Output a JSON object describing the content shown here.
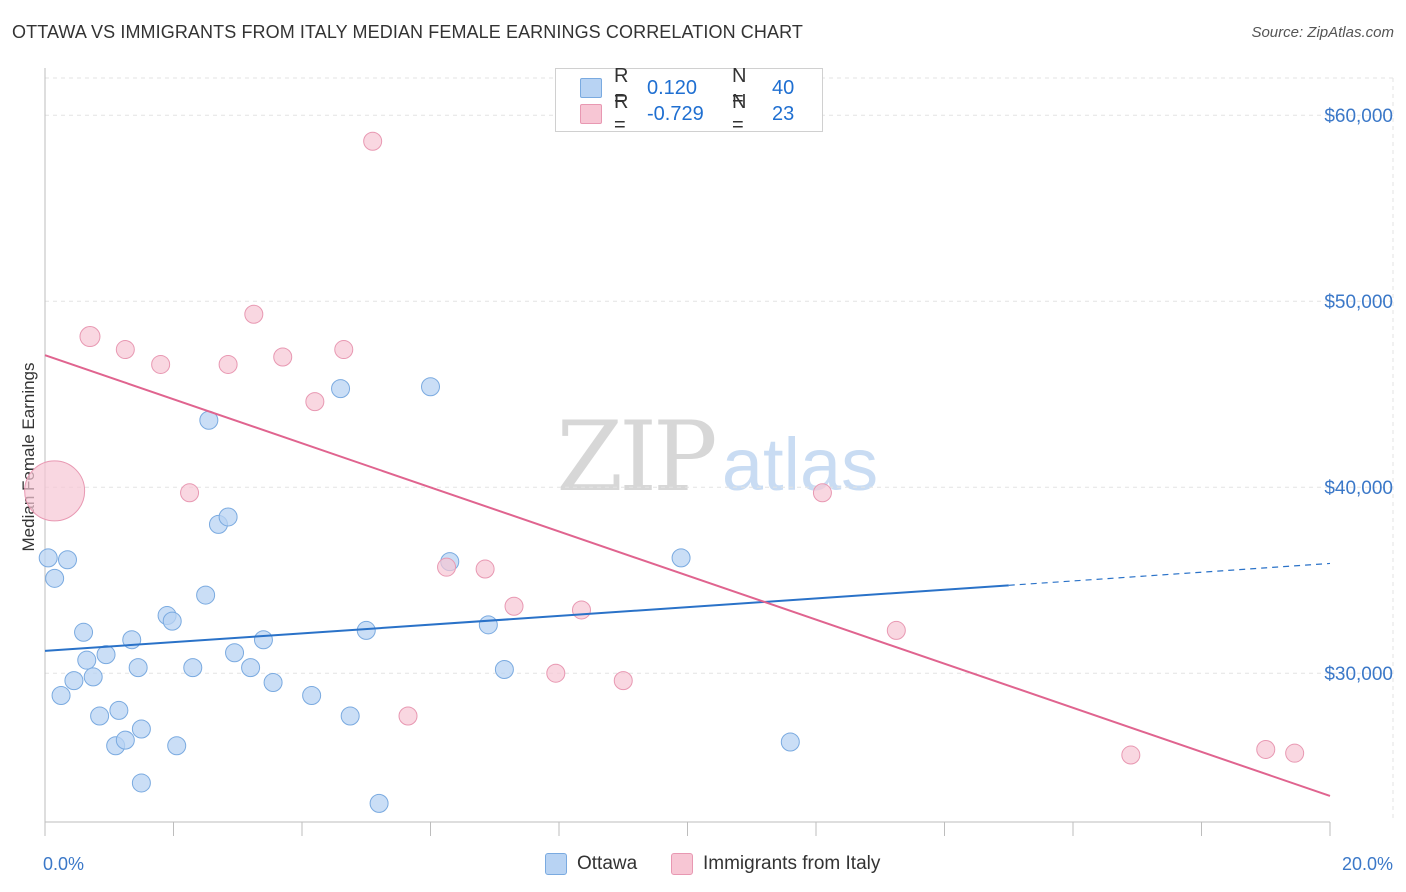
{
  "title": "OTTAWA VS IMMIGRANTS FROM ITALY MEDIAN FEMALE EARNINGS CORRELATION CHART",
  "source": "Source: ZipAtlas.com",
  "watermark": {
    "zip": "ZIP",
    "atlas": "atlas"
  },
  "legend_top": {
    "rows": [
      {
        "r_label": "R =",
        "r_value": "0.120",
        "n_label": "N =",
        "n_value": "40"
      },
      {
        "r_label": "R =",
        "r_value": "-0.729",
        "n_label": "N =",
        "n_value": "23"
      }
    ]
  },
  "legend_bottom": {
    "ottawa": "Ottawa",
    "italy": "Immigrants from Italy"
  },
  "colors": {
    "ottawa_fill": "#b8d3f3",
    "ottawa_stroke": "#7aaae0",
    "ottawa_line": "#2a72c8",
    "italy_fill": "#f7c6d4",
    "italy_stroke": "#e898b2",
    "italy_line": "#e0648f",
    "axis_text": "#3b78c8",
    "grid": "#e3e3e3"
  },
  "chart_data": {
    "type": "scatter",
    "ylabel": "Median Female Earnings",
    "xlabel": "",
    "xlim": [
      0,
      20
    ],
    "ylim": [
      22000,
      62000
    ],
    "x_tick_labels": [
      "0.0%",
      "20.0%"
    ],
    "y_ticks": [
      {
        "value": 30000,
        "label": "$30,000"
      },
      {
        "value": 40000,
        "label": "$40,000"
      },
      {
        "value": 50000,
        "label": "$50,000"
      },
      {
        "value": 60000,
        "label": "$60,000"
      }
    ],
    "grid": true,
    "series": [
      {
        "name": "Ottawa",
        "points": [
          [
            0.05,
            36200
          ],
          [
            0.35,
            36100
          ],
          [
            0.15,
            35100
          ],
          [
            0.6,
            32200
          ],
          [
            0.25,
            28800
          ],
          [
            0.45,
            29600
          ],
          [
            0.65,
            30700
          ],
          [
            0.75,
            29800
          ],
          [
            0.85,
            27700
          ],
          [
            0.95,
            31000
          ],
          [
            1.15,
            28000
          ],
          [
            1.35,
            31800
          ],
          [
            1.45,
            30300
          ],
          [
            1.1,
            26100
          ],
          [
            1.25,
            26400
          ],
          [
            1.5,
            27000
          ],
          [
            1.5,
            24100
          ],
          [
            1.9,
            33100
          ],
          [
            1.98,
            32800
          ],
          [
            2.05,
            26100
          ],
          [
            2.3,
            30300
          ],
          [
            2.5,
            34200
          ],
          [
            2.55,
            43600
          ],
          [
            2.7,
            38000
          ],
          [
            2.85,
            38400
          ],
          [
            2.95,
            31100
          ],
          [
            3.2,
            30300
          ],
          [
            3.4,
            31800
          ],
          [
            3.55,
            29500
          ],
          [
            4.15,
            28800
          ],
          [
            4.6,
            45300
          ],
          [
            4.75,
            27700
          ],
          [
            5.0,
            32300
          ],
          [
            5.2,
            23000
          ],
          [
            6.0,
            45400
          ],
          [
            6.3,
            36000
          ],
          [
            6.9,
            32600
          ],
          [
            7.15,
            30200
          ],
          [
            9.9,
            36200
          ],
          [
            11.6,
            26300
          ]
        ],
        "trend": {
          "x_start": 0,
          "y_start": 31200,
          "x_solid_end": 15.0,
          "x_end": 20,
          "y_end": 35900
        }
      },
      {
        "name": "Immigrants from Italy",
        "points": [
          [
            0.15,
            39800
          ],
          [
            0.7,
            48100
          ],
          [
            1.25,
            47400
          ],
          [
            1.8,
            46600
          ],
          [
            2.25,
            39700
          ],
          [
            2.85,
            46600
          ],
          [
            3.25,
            49300
          ],
          [
            3.7,
            47000
          ],
          [
            4.2,
            44600
          ],
          [
            4.65,
            47400
          ],
          [
            5.1,
            58600
          ],
          [
            5.65,
            27700
          ],
          [
            6.25,
            35700
          ],
          [
            6.85,
            35600
          ],
          [
            7.3,
            33600
          ],
          [
            7.95,
            30000
          ],
          [
            8.35,
            33400
          ],
          [
            9.0,
            29600
          ],
          [
            12.1,
            39700
          ],
          [
            13.25,
            32300
          ],
          [
            16.9,
            25600
          ],
          [
            19.0,
            25900
          ],
          [
            19.45,
            25700
          ]
        ],
        "point_sizes": [
          30,
          10,
          9,
          9,
          9,
          9,
          9,
          9,
          9,
          9,
          9,
          9,
          9,
          9,
          9,
          9,
          9,
          9,
          9,
          9,
          9,
          9,
          9
        ],
        "trend": {
          "x_start": 0,
          "y_start": 47100,
          "x_end": 20,
          "y_end": 23400
        }
      }
    ]
  }
}
